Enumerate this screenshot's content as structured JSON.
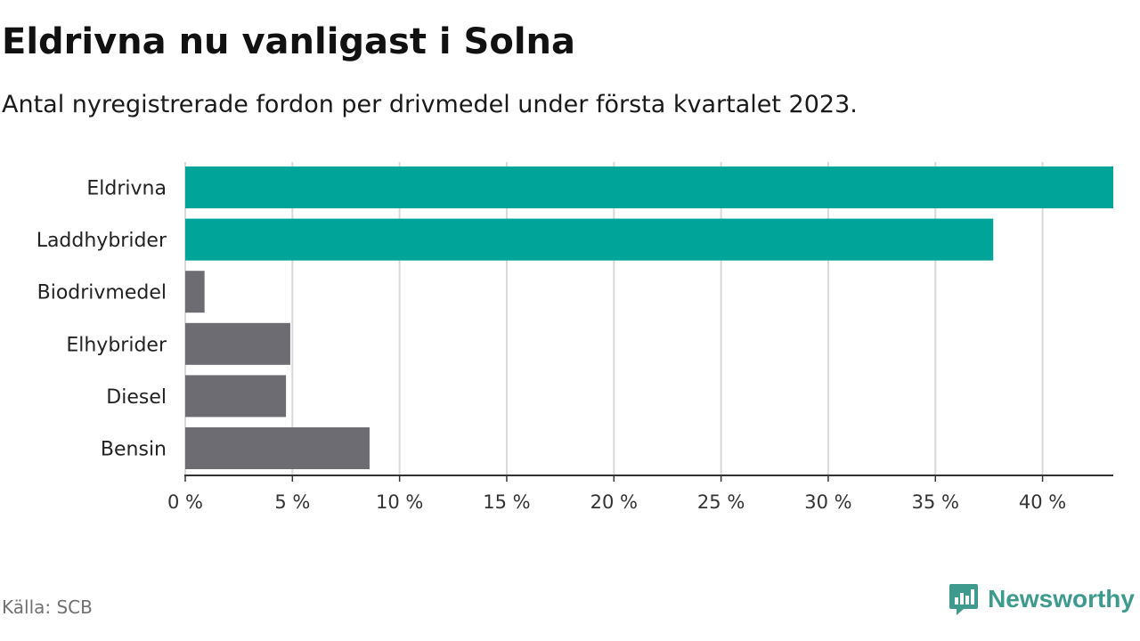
{
  "header": {
    "title": "Eldrivna nu vanligast i Solna",
    "subtitle": "Antal nyregistrerade fordon per drivmedel under första kvartalet 2023."
  },
  "footer": {
    "source": "Källa: SCB",
    "brand": "Newsworthy",
    "brand_icon": "bar-chart-speech-bubble-icon"
  },
  "colors": {
    "highlight": "#00a499",
    "other": "#6d6c72",
    "grid": "#d9d9d9",
    "axis": "#333333",
    "brand": "#3e9a8d"
  },
  "chart_data": {
    "type": "bar",
    "orientation": "horizontal",
    "title": "Eldrivna nu vanligast i Solna",
    "subtitle": "Antal nyregistrerade fordon per drivmedel under första kvartalet 2023.",
    "categories": [
      "Eldrivna",
      "Laddhybrider",
      "Biodrivmedel",
      "Elhybrider",
      "Diesel",
      "Bensin"
    ],
    "values": [
      43.3,
      37.7,
      0.9,
      4.9,
      4.7,
      8.6
    ],
    "highlighted": [
      true,
      true,
      false,
      false,
      false,
      false
    ],
    "unit": "%",
    "xlim": [
      0,
      43.3
    ],
    "xticks": [
      0,
      5,
      10,
      15,
      20,
      25,
      30,
      35,
      40
    ],
    "xtick_labels": [
      "0 %",
      "5 %",
      "10 %",
      "15 %",
      "20 %",
      "25 %",
      "30 %",
      "35 %",
      "40 %"
    ],
    "grid": true,
    "legend": "none"
  }
}
